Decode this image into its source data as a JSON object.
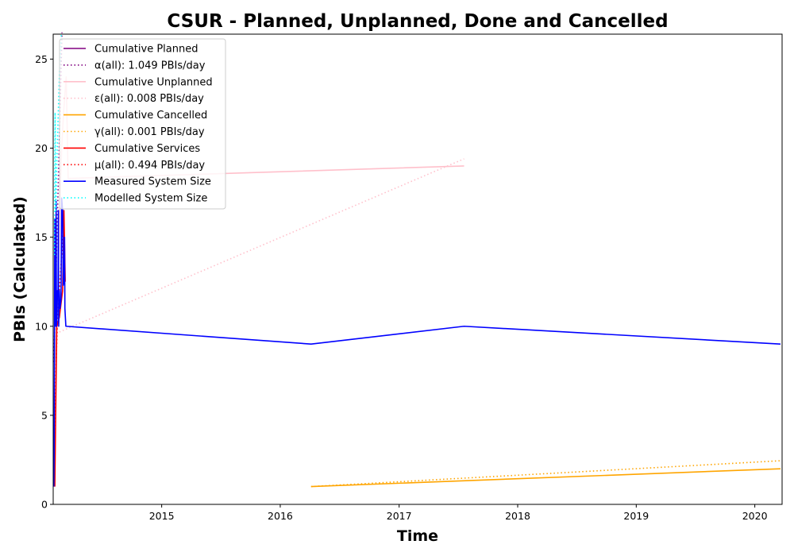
{
  "chart_data": {
    "type": "line",
    "title": "CSUR - Planned, Unplanned, Done  and Cancelled",
    "xlabel": "Time",
    "ylabel": "PBIs (Calculated)",
    "x_axis": {
      "type": "date",
      "range": [
        "2014-02-01",
        "2020-03-25"
      ],
      "tick_labels": [
        "2015",
        "2016",
        "2017",
        "2018",
        "2019",
        "2020"
      ],
      "tick_values": [
        "2015-01-01",
        "2016-01-01",
        "2017-01-01",
        "2018-01-01",
        "2019-01-01",
        "2020-01-01"
      ]
    },
    "y_axis": {
      "range": [
        0,
        26.4
      ],
      "tick_labels": [
        "0",
        "5",
        "10",
        "15",
        "20",
        "25"
      ],
      "tick_values": [
        0,
        5,
        10,
        15,
        20,
        25
      ]
    },
    "grid": false,
    "legend_position": "top-left",
    "series": [
      {
        "name": "Cumulative Planned",
        "color": "#800080",
        "style": "solid",
        "points": []
      },
      {
        "name": "α(all): 1.049 PBIs/day",
        "color": "#800080",
        "style": "dotted",
        "points": [
          [
            "2014-02-03",
            8
          ],
          [
            "2014-02-28",
            26.5
          ]
        ]
      },
      {
        "name": "Cumulative Unplanned",
        "color": "#ffc0cb",
        "style": "solid",
        "points": [
          [
            "2014-02-06",
            2
          ],
          [
            "2014-02-10",
            10
          ],
          [
            "2014-02-15",
            11
          ],
          [
            "2014-02-20",
            16
          ],
          [
            "2014-02-27",
            20
          ],
          [
            "2014-03-05",
            22
          ],
          [
            "2014-03-13",
            24
          ],
          [
            "2014-03-19",
            18.3
          ],
          [
            "2017-07-20",
            19
          ]
        ]
      },
      {
        "name": "ε(all): 0.008 PBIs/day",
        "color": "#ffc0cb",
        "style": "dotted",
        "points": [
          [
            "2014-02-10",
            9.6
          ],
          [
            "2017-07-20",
            19.4
          ]
        ]
      },
      {
        "name": "Cumulative Cancelled",
        "color": "#ffa500",
        "style": "solid",
        "points": [
          [
            "2016-04-05",
            1
          ],
          [
            "2020-03-20",
            2
          ]
        ]
      },
      {
        "name": "γ(all): 0.001 PBIs/day",
        "color": "#ffa500",
        "style": "dotted",
        "points": [
          [
            "2016-04-05",
            1
          ],
          [
            "2020-03-20",
            2.45
          ]
        ]
      },
      {
        "name": "Cumulative Services",
        "color": "#ff0000",
        "style": "solid",
        "points": [
          [
            "2014-02-06",
            1
          ],
          [
            "2014-02-08",
            4
          ],
          [
            "2014-02-12",
            10
          ],
          [
            "2014-02-20",
            10.5
          ],
          [
            "2014-03-02",
            12
          ],
          [
            "2014-03-06",
            16.5
          ],
          [
            "2014-03-10",
            12.5
          ]
        ]
      },
      {
        "name": "μ(all): 0.494 PBIs/day",
        "color": "#ff0000",
        "style": "dotted",
        "points": [
          [
            "2014-02-06",
            4
          ],
          [
            "2014-02-10",
            8
          ],
          [
            "2014-02-14",
            10.3
          ],
          [
            "2014-02-20",
            12
          ],
          [
            "2014-02-27",
            14
          ],
          [
            "2014-03-05",
            16
          ]
        ]
      },
      {
        "name": "Measured System Size",
        "color": "#0000ff",
        "style": "solid",
        "points": [
          [
            "2014-02-03",
            1
          ],
          [
            "2014-02-04",
            3
          ],
          [
            "2014-02-05",
            10
          ],
          [
            "2014-02-06",
            16
          ],
          [
            "2014-02-08",
            16
          ],
          [
            "2014-02-09",
            10
          ],
          [
            "2014-02-10",
            17
          ],
          [
            "2014-02-11",
            10
          ],
          [
            "2014-02-13",
            10.5
          ],
          [
            "2014-02-14",
            12
          ],
          [
            "2014-02-16",
            12
          ],
          [
            "2014-02-17",
            16.5
          ],
          [
            "2014-02-18",
            10
          ],
          [
            "2014-02-20",
            12
          ],
          [
            "2014-02-22",
            11
          ],
          [
            "2014-02-25",
            11.5
          ],
          [
            "2014-02-27",
            17.2
          ],
          [
            "2014-03-02",
            16.5
          ],
          [
            "2014-03-04",
            12.3
          ],
          [
            "2014-03-07",
            12.7
          ],
          [
            "2014-03-08",
            15
          ],
          [
            "2014-03-09",
            11
          ],
          [
            "2014-03-12",
            10
          ],
          [
            "2016-04-05",
            9
          ],
          [
            "2017-07-20",
            10
          ],
          [
            "2020-03-20",
            9
          ]
        ]
      },
      {
        "name": "Modelled System Size",
        "color": "#00ffff",
        "style": "dotted",
        "points": [
          [
            "2014-02-05",
            14
          ],
          [
            "2014-02-07",
            22
          ],
          [
            "2014-02-08",
            19
          ],
          [
            "2014-02-09",
            16.5
          ],
          [
            "2014-02-12",
            19
          ],
          [
            "2014-02-15",
            21
          ],
          [
            "2014-02-20",
            24
          ],
          [
            "2014-02-26",
            26.4
          ]
        ]
      }
    ]
  }
}
